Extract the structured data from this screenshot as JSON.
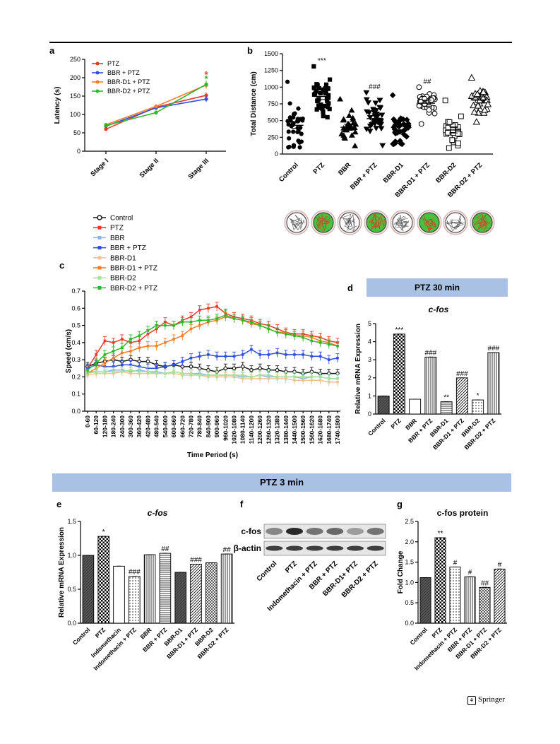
{
  "footer": {
    "publisher": "Springer"
  },
  "banners": {
    "d": "PTZ 30 min",
    "mid": "PTZ 3 min"
  },
  "colors": {
    "PTZ": "#e8392b",
    "BBR + PTZ": "#2d4fe0",
    "BBR-D1 + PTZ": "#f57c2a",
    "BBR-D2 + PTZ": "#2db82a",
    "Control": "#1a1a1a",
    "BBR": "#8ab4f0",
    "BBR-D1": "#f5c291",
    "BBR-D2": "#a5e39a"
  },
  "chart_data": [
    {
      "panel": "a",
      "type": "line",
      "ylabel": "Latency (s)",
      "ylim": [
        0,
        250
      ],
      "yticks": [
        0,
        50,
        100,
        150,
        200,
        250
      ],
      "categories": [
        "Stage I",
        "Stage II",
        "Stage III"
      ],
      "legend": "top-left",
      "series": [
        {
          "name": "PTZ",
          "values": [
            60,
            120,
            152
          ],
          "err": [
            4,
            6,
            8
          ]
        },
        {
          "name": "BBR + PTZ",
          "values": [
            68,
            118,
            142
          ],
          "err": [
            4,
            6,
            8
          ]
        },
        {
          "name": "BBR-D1 + PTZ",
          "values": [
            72,
            122,
            180
          ],
          "err": [
            4,
            6,
            10
          ]
        },
        {
          "name": "BBR-D2 + PTZ",
          "values": [
            70,
            105,
            182
          ],
          "err": [
            4,
            6,
            10
          ]
        }
      ],
      "annotations": [
        {
          "category": "Stage III",
          "text": "*",
          "color": "#e8392b",
          "y": 208
        },
        {
          "category": "Stage III",
          "text": "*",
          "color": "#2db82a",
          "y": 196
        }
      ]
    },
    {
      "panel": "b",
      "type": "scatter",
      "ylabel": "Total Distance (cm)",
      "ylim": [
        0,
        1500
      ],
      "yticks": [
        0,
        250,
        500,
        750,
        1000,
        1250,
        1500
      ],
      "categories": [
        "Control",
        "PTZ",
        "BBR",
        "BBR + PTZ",
        "BBR-D1",
        "BBR-D1 + PTZ",
        "BBR-D2",
        "BBR-D2 + PTZ"
      ],
      "series": [
        {
          "name": "Control",
          "mean": 430,
          "min": 100,
          "max": 1080,
          "n": 40,
          "marker": "circle-filled"
        },
        {
          "name": "PTZ",
          "mean": 860,
          "min": 550,
          "max": 1310,
          "n": 40,
          "marker": "square-filled"
        },
        {
          "name": "BBR",
          "mean": 400,
          "min": 120,
          "max": 820,
          "n": 28,
          "marker": "triangle-filled"
        },
        {
          "name": "BBR + PTZ",
          "mean": 530,
          "min": 130,
          "max": 920,
          "n": 40,
          "marker": "triangle-down-filled"
        },
        {
          "name": "BBR-D1",
          "mean": 360,
          "min": 150,
          "max": 880,
          "n": 40,
          "marker": "diamond-filled"
        },
        {
          "name": "BBR-D1 + PTZ",
          "mean": 760,
          "min": 450,
          "max": 1000,
          "n": 40,
          "marker": "circle-open"
        },
        {
          "name": "BBR-D2",
          "mean": 360,
          "min": 90,
          "max": 800,
          "n": 28,
          "marker": "square-open"
        },
        {
          "name": "BBR-D2 + PTZ",
          "mean": 810,
          "min": 480,
          "max": 1140,
          "n": 40,
          "marker": "triangle-open"
        }
      ],
      "annotations": [
        {
          "category": "PTZ",
          "text": "***"
        },
        {
          "category": "BBR + PTZ",
          "text": "###"
        },
        {
          "category": "BBR-D1 + PTZ",
          "text": "##"
        }
      ]
    },
    {
      "panel": "c",
      "type": "line",
      "xlabel": "Time Period (s)",
      "ylabel": "Speed (cm/s)",
      "ylim": [
        0.0,
        0.7
      ],
      "yticks": [
        0.0,
        0.1,
        0.2,
        0.3,
        0.4,
        0.5,
        0.6,
        0.7
      ],
      "categories": [
        "0-60",
        "60-120",
        "120-180",
        "180-240",
        "240-300",
        "300-360",
        "360-420",
        "420-480",
        "480-540",
        "540-600",
        "600-660",
        "660-720",
        "720-780",
        "780-840",
        "840-900",
        "900-960",
        "960-1020",
        "1020-1080",
        "1080-1140",
        "1140-1200",
        "1200-1260",
        "1260-1320",
        "1320-1380",
        "1380-1440",
        "1440-1500",
        "1500-1560",
        "1560-1620",
        "1620-1680",
        "1680-1740",
        "1740-1800"
      ],
      "legend": "top-left",
      "series": [
        {
          "name": "Control",
          "values": [
            0.26,
            0.28,
            0.29,
            0.3,
            0.29,
            0.3,
            0.29,
            0.29,
            0.27,
            0.26,
            0.27,
            0.26,
            0.26,
            0.25,
            0.24,
            0.23,
            0.25,
            0.25,
            0.26,
            0.24,
            0.25,
            0.24,
            0.24,
            0.23,
            0.23,
            0.22,
            0.23,
            0.22,
            0.22,
            0.22
          ]
        },
        {
          "name": "PTZ",
          "values": [
            0.25,
            0.33,
            0.41,
            0.4,
            0.42,
            0.4,
            0.41,
            0.45,
            0.48,
            0.52,
            0.5,
            0.53,
            0.55,
            0.59,
            0.6,
            0.61,
            0.57,
            0.55,
            0.54,
            0.53,
            0.51,
            0.5,
            0.48,
            0.46,
            0.45,
            0.45,
            0.44,
            0.43,
            0.41,
            0.4
          ]
        },
        {
          "name": "BBR",
          "values": [
            0.23,
            0.23,
            0.23,
            0.24,
            0.24,
            0.23,
            0.24,
            0.23,
            0.23,
            0.22,
            0.23,
            0.22,
            0.22,
            0.22,
            0.21,
            0.21,
            0.21,
            0.21,
            0.2,
            0.2,
            0.21,
            0.2,
            0.2,
            0.2,
            0.2,
            0.19,
            0.2,
            0.2,
            0.19,
            0.19
          ]
        },
        {
          "name": "BBR + PTZ",
          "values": [
            0.25,
            0.27,
            0.26,
            0.26,
            0.27,
            0.27,
            0.26,
            0.25,
            0.25,
            0.26,
            0.27,
            0.29,
            0.31,
            0.32,
            0.33,
            0.32,
            0.32,
            0.32,
            0.33,
            0.36,
            0.33,
            0.33,
            0.34,
            0.33,
            0.33,
            0.33,
            0.32,
            0.32,
            0.3,
            0.31
          ]
        },
        {
          "name": "BBR-D1",
          "values": [
            0.21,
            0.22,
            0.22,
            0.22,
            0.23,
            0.22,
            0.22,
            0.22,
            0.22,
            0.22,
            0.22,
            0.21,
            0.21,
            0.21,
            0.2,
            0.2,
            0.2,
            0.2,
            0.19,
            0.19,
            0.19,
            0.19,
            0.19,
            0.19,
            0.18,
            0.18,
            0.18,
            0.18,
            0.17,
            0.17
          ]
        },
        {
          "name": "BBR-D1 + PTZ",
          "values": [
            0.22,
            0.25,
            0.28,
            0.31,
            0.34,
            0.35,
            0.37,
            0.38,
            0.38,
            0.4,
            0.42,
            0.44,
            0.48,
            0.5,
            0.52,
            0.53,
            0.55,
            0.54,
            0.53,
            0.51,
            0.5,
            0.48,
            0.46,
            0.46,
            0.44,
            0.44,
            0.43,
            0.41,
            0.4,
            0.38
          ]
        },
        {
          "name": "BBR-D2",
          "values": [
            0.22,
            0.23,
            0.23,
            0.23,
            0.23,
            0.24,
            0.23,
            0.23,
            0.22,
            0.22,
            0.23,
            0.22,
            0.22,
            0.21,
            0.21,
            0.21,
            0.21,
            0.21,
            0.21,
            0.2,
            0.21,
            0.21,
            0.2,
            0.2,
            0.2,
            0.2,
            0.2,
            0.2,
            0.19,
            0.19
          ]
        },
        {
          "name": "BBR-D2 + PTZ",
          "values": [
            0.24,
            0.28,
            0.33,
            0.35,
            0.37,
            0.42,
            0.44,
            0.47,
            0.5,
            0.5,
            0.5,
            0.52,
            0.52,
            0.53,
            0.53,
            0.54,
            0.56,
            0.54,
            0.53,
            0.52,
            0.5,
            0.48,
            0.46,
            0.45,
            0.44,
            0.43,
            0.41,
            0.4,
            0.39,
            0.38
          ]
        }
      ]
    },
    {
      "panel": "d",
      "type": "bar",
      "title": "c-fos",
      "ylabel": "Relative mRNA Expression",
      "ylim": [
        0,
        5
      ],
      "yticks": [
        0,
        1,
        2,
        3,
        4,
        5
      ],
      "categories": [
        "Control",
        "PTZ",
        "BBR",
        "BBR + PTZ",
        "BBR-D1",
        "BBR-D1 + PTZ",
        "BBR-D2",
        "BBR-D2 + PTZ"
      ],
      "values": [
        1.0,
        4.42,
        0.82,
        3.15,
        0.68,
        2.0,
        0.78,
        3.4
      ],
      "labels": [
        "",
        "***",
        "",
        "###",
        "**",
        "###",
        "*",
        "###"
      ]
    },
    {
      "panel": "e",
      "type": "bar",
      "title": "c-fos",
      "ylabel": "Relative mRNA Expression",
      "ylim": [
        0.0,
        1.5
      ],
      "yticks": [
        0.0,
        0.5,
        1.0,
        1.5
      ],
      "categories": [
        "Control",
        "PTZ",
        "Indomethacin",
        "Indomethacin + PTZ",
        "BBR",
        "BBR + PTZ",
        "BBR-D1",
        "BBR-D1 + PTZ",
        "BBR-D2",
        "BBR-D2 + PTZ"
      ],
      "values": [
        1.0,
        1.28,
        0.84,
        0.69,
        1.01,
        1.03,
        0.75,
        0.87,
        0.89,
        1.02
      ],
      "labels": [
        "",
        "*",
        "",
        "###",
        "",
        "##",
        "",
        "###",
        "",
        "##"
      ]
    },
    {
      "panel": "g",
      "type": "bar",
      "title": "c-fos protein",
      "ylabel": "Fold Change",
      "ylim": [
        0.0,
        2.5
      ],
      "yticks": [
        0.0,
        0.5,
        1.0,
        1.5,
        2.0,
        2.5
      ],
      "categories": [
        "Control",
        "PTZ",
        "Indomethacin + PTZ",
        "BBR + PTZ",
        "BBR-D1 + PTZ",
        "BBR-D2 + PTZ"
      ],
      "values": [
        1.12,
        2.1,
        1.38,
        1.14,
        0.88,
        1.33
      ],
      "labels": [
        "",
        "**",
        "#",
        "#",
        "##",
        "#"
      ]
    }
  ],
  "blot_f": {
    "rows": [
      "c-fos",
      "β-actin"
    ],
    "lanes": [
      "Control",
      "PTZ",
      "Indomethacin + PTZ",
      "BBR + PTZ",
      "BBR-D1+ PTZ",
      "BBR-D2 + PTZ"
    ]
  }
}
